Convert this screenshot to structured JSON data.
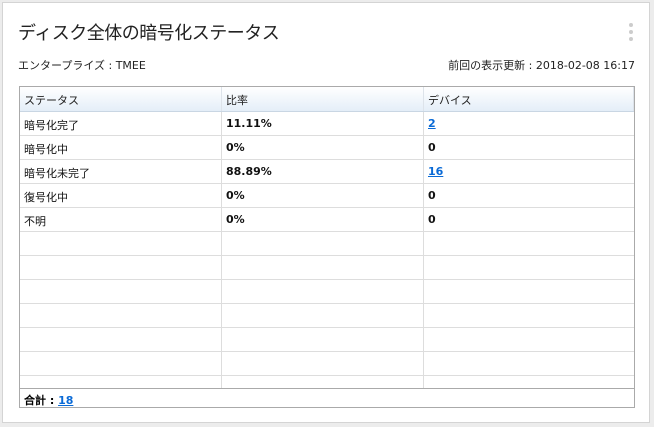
{
  "title": "ディスク全体の暗号化ステータス",
  "enterprise": "エンタープライズ : TMEE",
  "last_refresh": "前回の表示更新 : 2018-02-08 16:17",
  "columns": [
    "ステータス",
    "比率",
    "デバイス"
  ],
  "rows": [
    {
      "status": "暗号化完了",
      "ratio": "11.11%",
      "devices": "2",
      "link": true
    },
    {
      "status": "暗号化中",
      "ratio": "0%",
      "devices": "0",
      "link": false
    },
    {
      "status": "暗号化未完了",
      "ratio": "88.89%",
      "devices": "16",
      "link": true
    },
    {
      "status": "復号化中",
      "ratio": "0%",
      "devices": "0",
      "link": false
    },
    {
      "status": "不明",
      "ratio": "0%",
      "devices": "0",
      "link": false
    }
  ],
  "footer": {
    "label": "合計 : ",
    "total": "18"
  }
}
